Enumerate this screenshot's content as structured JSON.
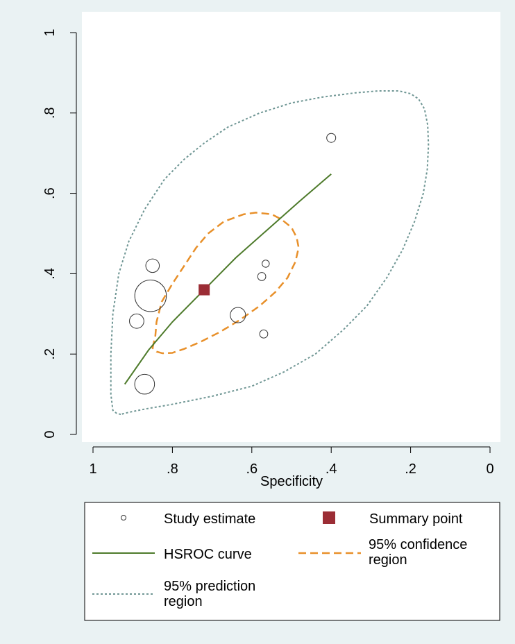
{
  "chart_data": {
    "type": "scatter",
    "xlabel": "Specificity",
    "ylabel": "",
    "x_reversed": true,
    "xlim": [
      0,
      1
    ],
    "ylim": [
      0,
      1
    ],
    "x_ticks": [
      {
        "value": 1,
        "label": "1"
      },
      {
        "value": 0.8,
        "label": ".8"
      },
      {
        "value": 0.6,
        "label": ".6"
      },
      {
        "value": 0.4,
        "label": ".4"
      },
      {
        "value": 0.2,
        "label": ".2"
      },
      {
        "value": 0,
        "label": "0"
      }
    ],
    "y_ticks": [
      {
        "value": 0,
        "label": "0"
      },
      {
        "value": 0.2,
        "label": ".2"
      },
      {
        "value": 0.4,
        "label": ".4"
      },
      {
        "value": 0.6,
        "label": ".6"
      },
      {
        "value": 0.8,
        "label": ".8"
      },
      {
        "value": 1,
        "label": "1"
      }
    ],
    "grid": false,
    "legend_position": "bottom",
    "colors": {
      "plot_background": "#ffffff",
      "outer_background": "#eaf2f3",
      "study_estimate": "#333333",
      "summary_point": "#9b2d35",
      "hsroc_curve": "#4d7a2a",
      "confidence_region": "#e8902a",
      "prediction_region": "#6f9694"
    },
    "study_estimates": [
      {
        "specificity": 0.855,
        "sensitivity": 0.345,
        "weight": 3.5
      },
      {
        "specificity": 0.87,
        "sensitivity": 0.125,
        "weight": 2.2
      },
      {
        "specificity": 0.89,
        "sensitivity": 0.282,
        "weight": 1.6
      },
      {
        "specificity": 0.85,
        "sensitivity": 0.42,
        "weight": 1.5
      },
      {
        "specificity": 0.635,
        "sensitivity": 0.297,
        "weight": 1.7
      },
      {
        "specificity": 0.4,
        "sensitivity": 0.738,
        "weight": 1.0
      },
      {
        "specificity": 0.565,
        "sensitivity": 0.425,
        "weight": 0.8
      },
      {
        "specificity": 0.575,
        "sensitivity": 0.393,
        "weight": 0.9
      },
      {
        "specificity": 0.57,
        "sensitivity": 0.25,
        "weight": 0.9
      }
    ],
    "summary_point": {
      "specificity": 0.72,
      "sensitivity": 0.36
    },
    "hsroc_curve": [
      [
        0.92,
        0.125
      ],
      [
        0.86,
        0.21
      ],
      [
        0.8,
        0.28
      ],
      [
        0.72,
        0.36
      ],
      [
        0.64,
        0.44
      ],
      [
        0.56,
        0.51
      ],
      [
        0.48,
        0.58
      ],
      [
        0.4,
        0.648
      ]
    ],
    "confidence_region": [
      [
        0.85,
        0.215
      ],
      [
        0.843,
        0.245
      ],
      [
        0.84,
        0.28
      ],
      [
        0.827,
        0.33
      ],
      [
        0.8,
        0.375
      ],
      [
        0.77,
        0.42
      ],
      [
        0.74,
        0.465
      ],
      [
        0.71,
        0.5
      ],
      [
        0.67,
        0.53
      ],
      [
        0.62,
        0.548
      ],
      [
        0.59,
        0.552
      ],
      [
        0.55,
        0.548
      ],
      [
        0.525,
        0.535
      ],
      [
        0.5,
        0.515
      ],
      [
        0.487,
        0.49
      ],
      [
        0.482,
        0.465
      ],
      [
        0.49,
        0.43
      ],
      [
        0.51,
        0.39
      ],
      [
        0.54,
        0.355
      ],
      [
        0.58,
        0.32
      ],
      [
        0.63,
        0.285
      ],
      [
        0.68,
        0.255
      ],
      [
        0.73,
        0.23
      ],
      [
        0.77,
        0.213
      ],
      [
        0.8,
        0.203
      ],
      [
        0.825,
        0.202
      ],
      [
        0.84,
        0.206
      ],
      [
        0.85,
        0.215
      ]
    ],
    "prediction_region": [
      [
        0.93,
        0.05
      ],
      [
        0.94,
        0.052
      ],
      [
        0.95,
        0.06
      ],
      [
        0.955,
        0.1
      ],
      [
        0.955,
        0.2
      ],
      [
        0.95,
        0.3
      ],
      [
        0.935,
        0.4
      ],
      [
        0.91,
        0.48
      ],
      [
        0.87,
        0.56
      ],
      [
        0.82,
        0.635
      ],
      [
        0.77,
        0.685
      ],
      [
        0.72,
        0.725
      ],
      [
        0.66,
        0.765
      ],
      [
        0.58,
        0.8
      ],
      [
        0.5,
        0.825
      ],
      [
        0.42,
        0.84
      ],
      [
        0.34,
        0.85
      ],
      [
        0.28,
        0.855
      ],
      [
        0.23,
        0.855
      ],
      [
        0.2,
        0.848
      ],
      [
        0.18,
        0.835
      ],
      [
        0.165,
        0.81
      ],
      [
        0.157,
        0.77
      ],
      [
        0.155,
        0.72
      ],
      [
        0.158,
        0.66
      ],
      [
        0.168,
        0.6
      ],
      [
        0.19,
        0.53
      ],
      [
        0.22,
        0.46
      ],
      [
        0.26,
        0.39
      ],
      [
        0.31,
        0.32
      ],
      [
        0.37,
        0.26
      ],
      [
        0.44,
        0.2
      ],
      [
        0.52,
        0.155
      ],
      [
        0.6,
        0.12
      ],
      [
        0.7,
        0.095
      ],
      [
        0.8,
        0.075
      ],
      [
        0.87,
        0.063
      ],
      [
        0.91,
        0.055
      ],
      [
        0.93,
        0.05
      ]
    ]
  },
  "legend": {
    "study_estimate": "Study estimate",
    "summary_point": "Summary point",
    "hsroc_curve": "HSROC curve",
    "confidence_line1": "95% confidence",
    "confidence_line2": "region",
    "prediction_line1": "95% prediction",
    "prediction_line2": "region"
  }
}
